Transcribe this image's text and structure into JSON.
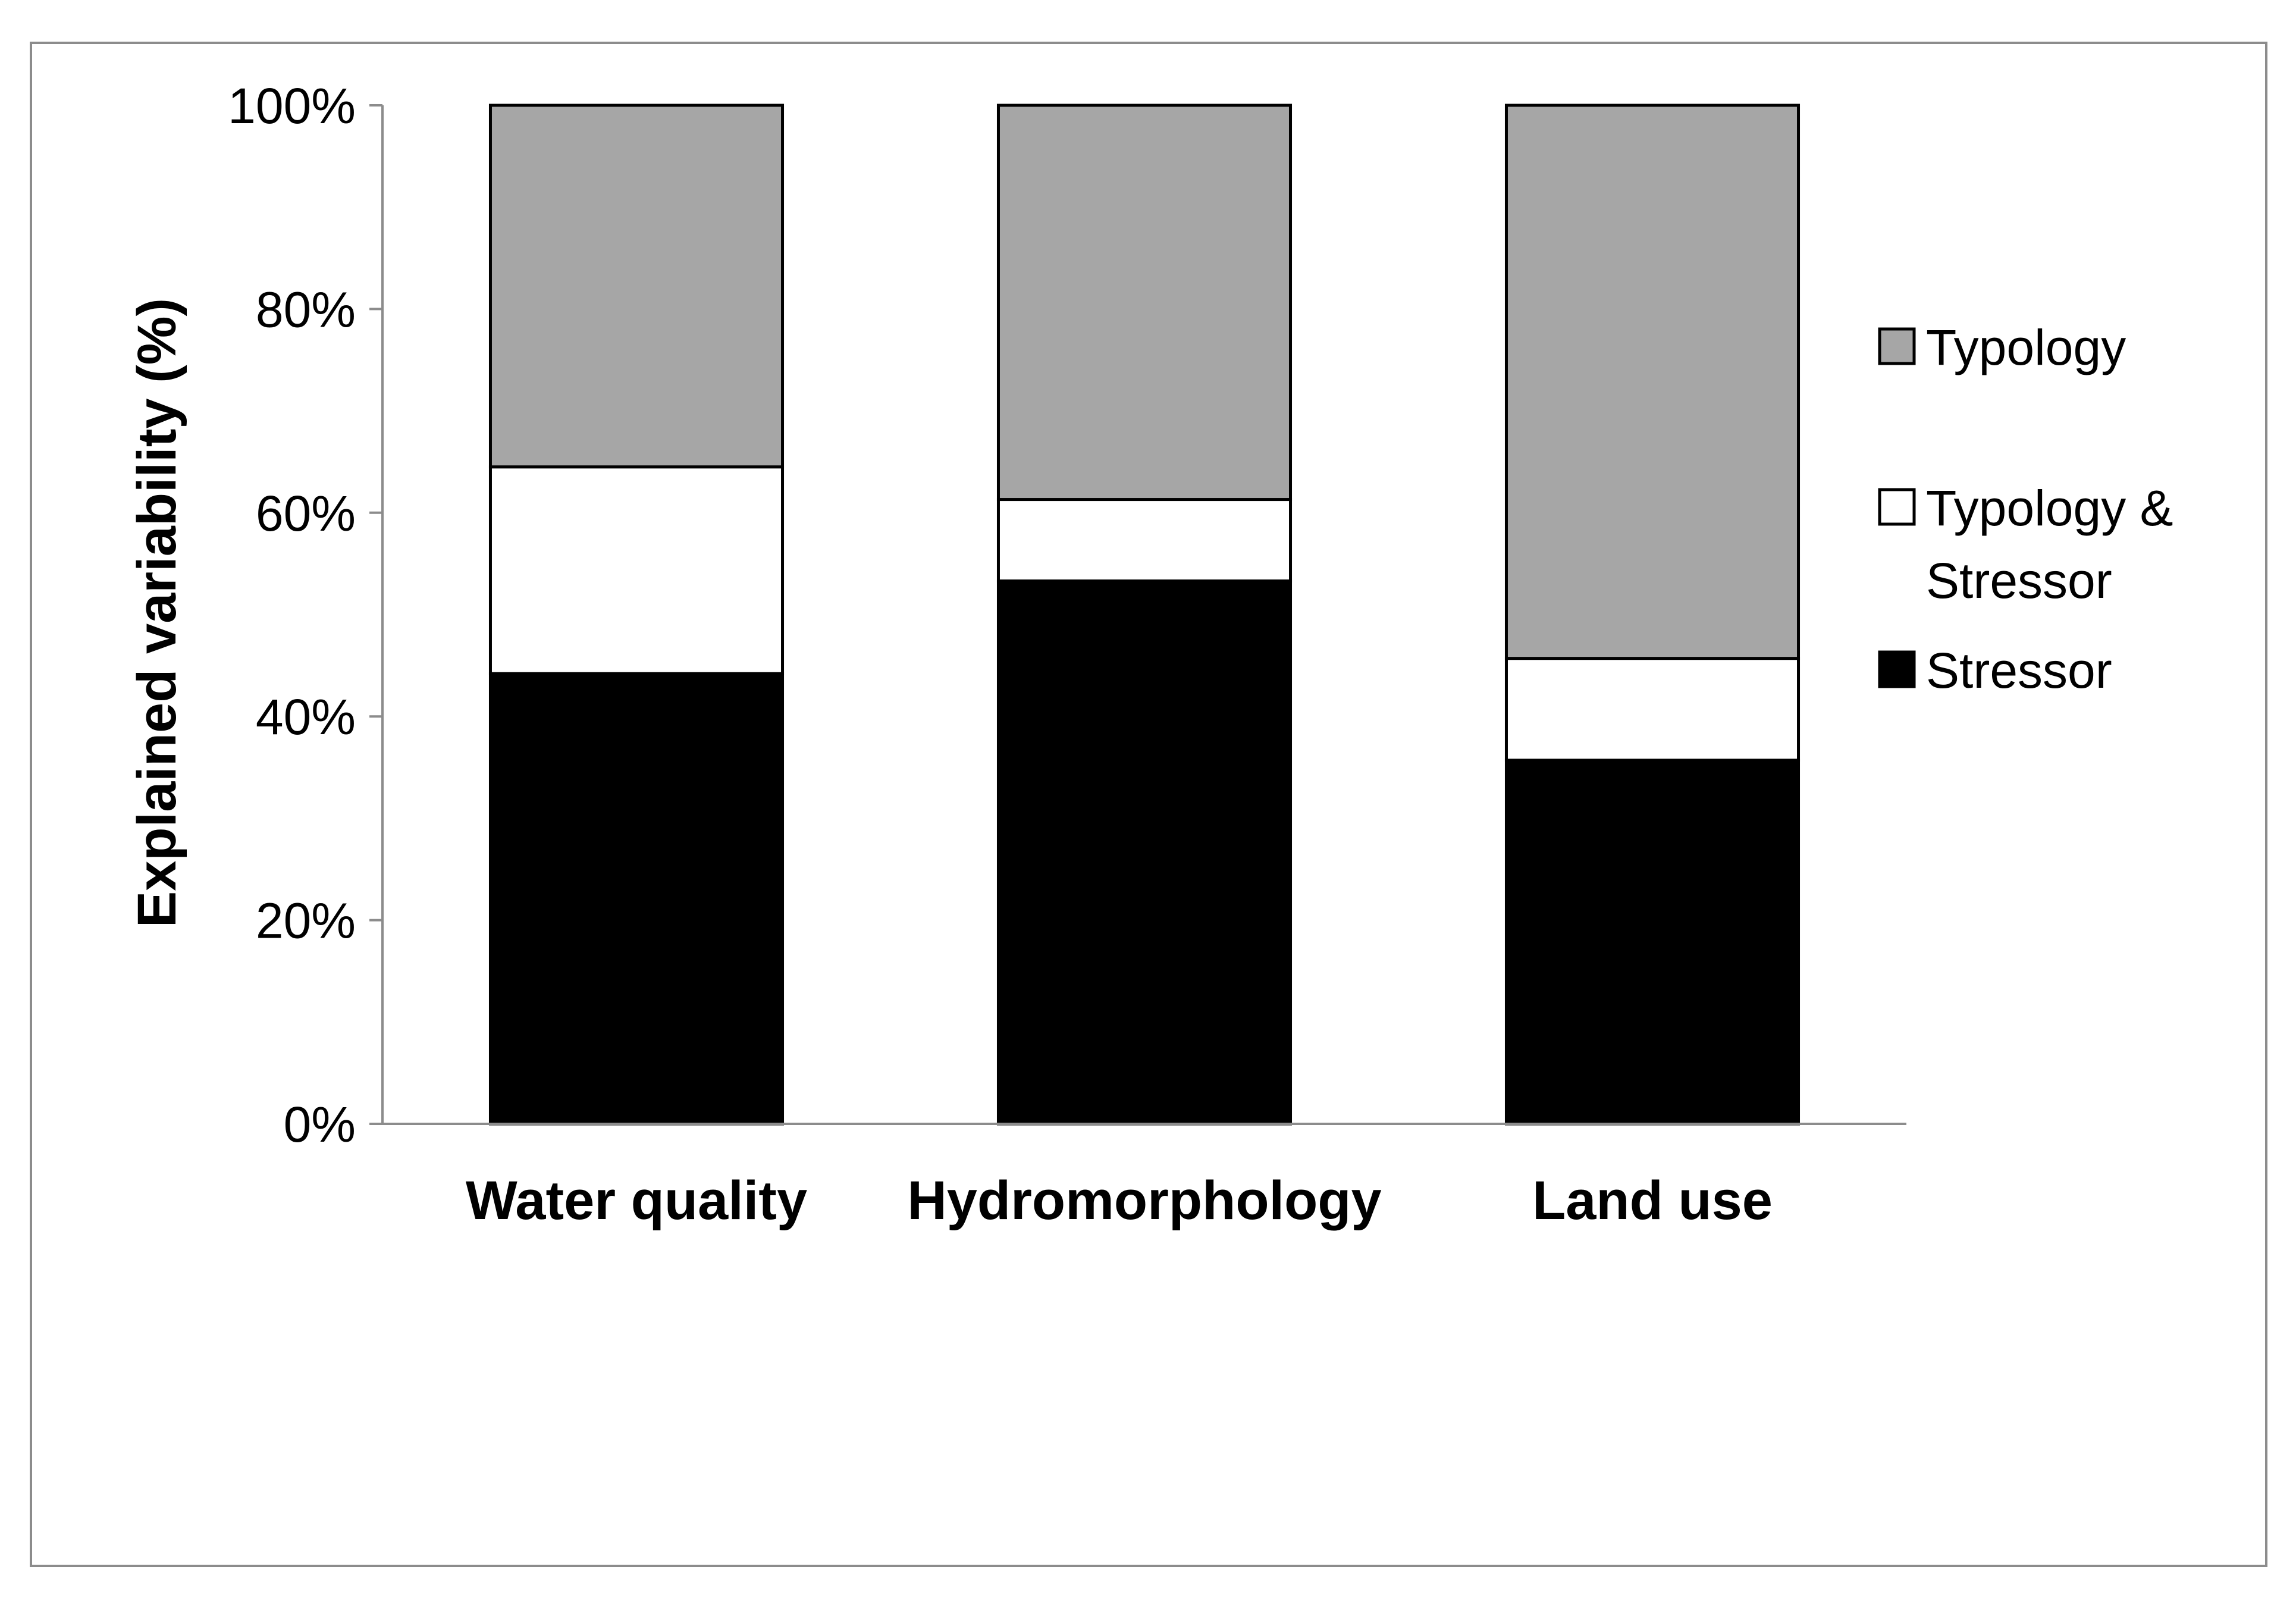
{
  "chart_data": {
    "type": "bar",
    "stacked": true,
    "normalized": true,
    "title": "",
    "xlabel": "",
    "ylabel": "Explained variability (%)",
    "ylim": [
      0,
      100
    ],
    "yticks": [
      "0%",
      "20%",
      "40%",
      "60%",
      "80%",
      "100%"
    ],
    "categories": [
      "Water quality",
      "Hydromorphology",
      "Land use"
    ],
    "series": [
      {
        "name": "Stressor",
        "color": "#000000",
        "values": [
          44.2,
          53.3,
          35.7
        ]
      },
      {
        "name": "Typology & Stressor",
        "color": "#ffffff",
        "values": [
          20.3,
          8.0,
          10.0
        ]
      },
      {
        "name": "Typology",
        "color": "#a6a6a6",
        "values": [
          35.5,
          38.7,
          54.3
        ]
      }
    ],
    "legend": {
      "position": "right",
      "items": [
        {
          "label": "Typology",
          "color": "#a6a6a6"
        },
        {
          "label_lines": [
            "Typology &",
            "Stressor"
          ],
          "color": "#ffffff"
        },
        {
          "label": "Stressor",
          "color": "#000000"
        }
      ]
    },
    "grid": false
  }
}
